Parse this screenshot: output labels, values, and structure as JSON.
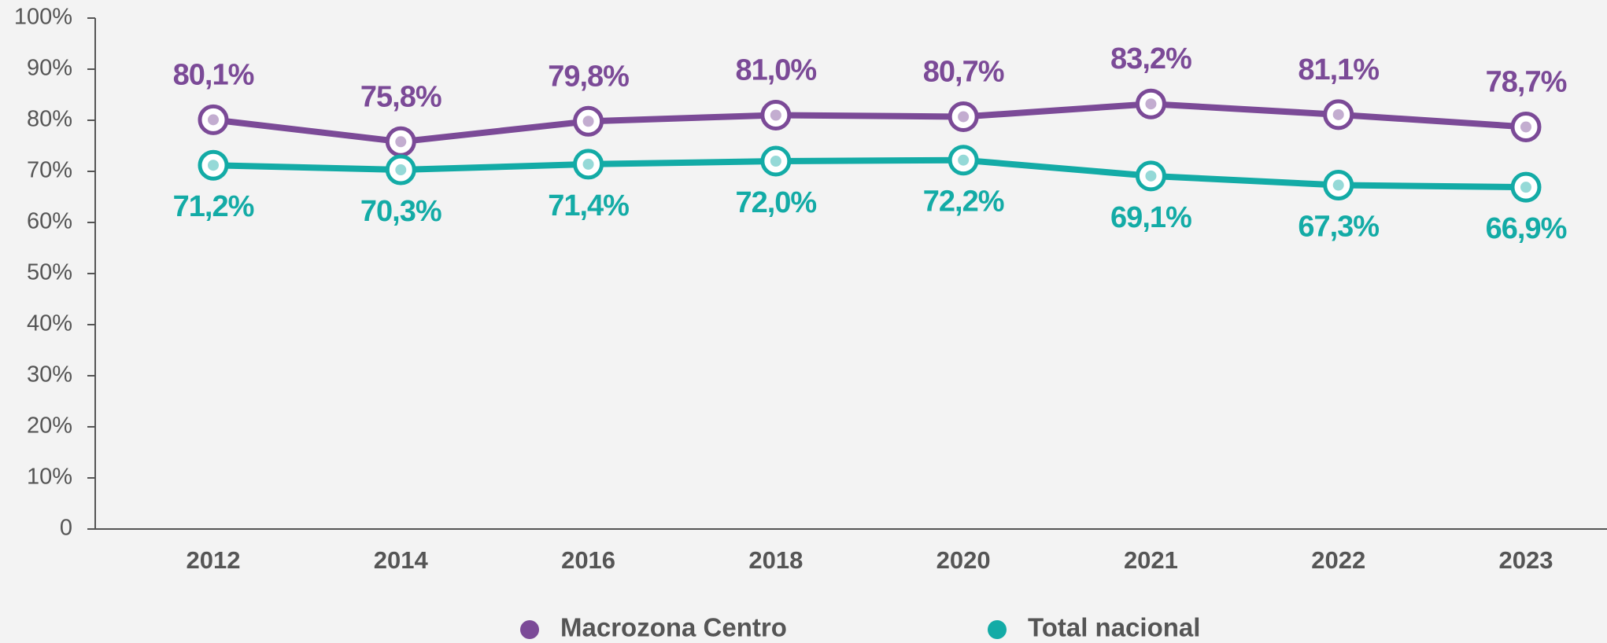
{
  "chart_data": {
    "type": "line",
    "categories": [
      "2012",
      "2014",
      "2016",
      "2018",
      "2020",
      "2021",
      "2022",
      "2023"
    ],
    "series": [
      {
        "name": "Macrozona Centro",
        "color": "#7b4a97",
        "values": [
          80.1,
          75.8,
          79.8,
          81.0,
          80.7,
          83.2,
          81.1,
          78.7
        ],
        "value_labels": [
          "80,1%",
          "75,8%",
          "79,8%",
          "81,0%",
          "80,7%",
          "83,2%",
          "81,1%",
          "78,7%"
        ]
      },
      {
        "name": "Total nacional",
        "color": "#13aba6",
        "values": [
          71.2,
          70.3,
          71.4,
          72.0,
          72.2,
          69.1,
          67.3,
          66.9
        ],
        "value_labels": [
          "71,2%",
          "70,3%",
          "71,4%",
          "72,0%",
          "72,2%",
          "69,1%",
          "67,3%",
          "66,9%"
        ]
      }
    ],
    "ylim": [
      0,
      100
    ],
    "yticks": [
      0,
      {
        "value": 10,
        "label": "10%"
      },
      {
        "value": 20,
        "label": "20%"
      },
      {
        "value": 30,
        "label": "30%"
      },
      {
        "value": 40,
        "label": "40%"
      },
      {
        "value": 50,
        "label": "50%"
      },
      {
        "value": 60,
        "label": "60%"
      },
      {
        "value": 70,
        "label": "70%"
      },
      {
        "value": 80,
        "label": "80%"
      },
      {
        "value": 90,
        "label": "90%"
      },
      {
        "value": 100,
        "label": "100%"
      }
    ],
    "grid": false,
    "legend": "bottom"
  }
}
